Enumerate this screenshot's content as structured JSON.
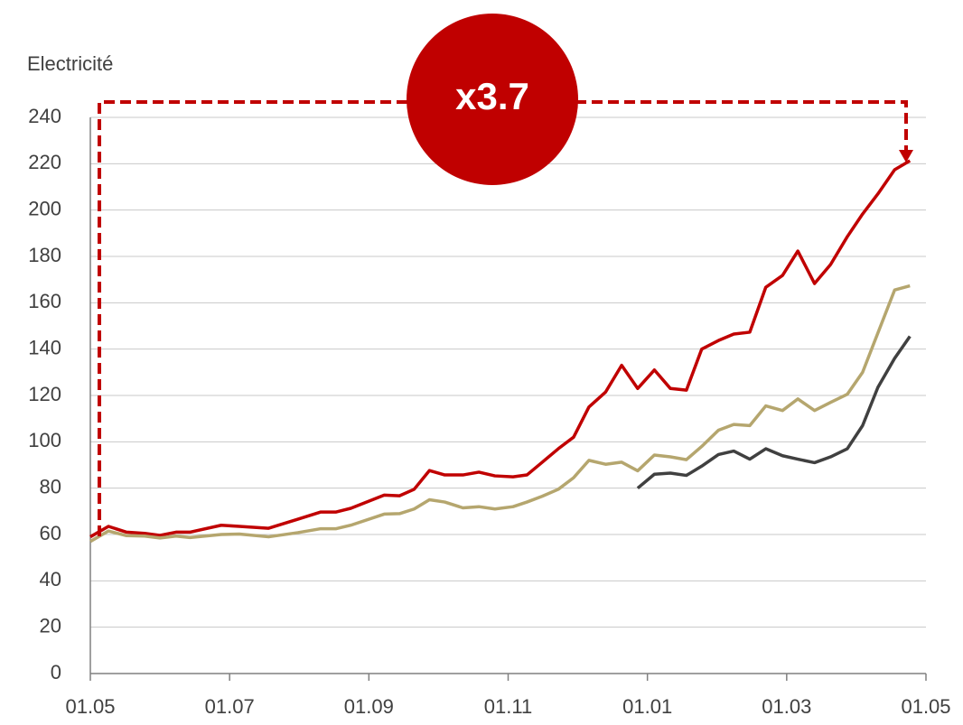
{
  "chart_data": {
    "type": "line",
    "y_label": "Electricité",
    "annotation": "x3.7",
    "x": [
      0,
      0.26,
      0.52,
      0.78,
      1.0,
      1.23,
      1.43,
      1.88,
      2.14,
      2.56,
      2.98,
      3.31,
      3.53,
      3.74,
      4.22,
      4.44,
      4.65,
      4.87,
      5.09,
      5.35,
      5.58,
      5.81,
      6.07,
      6.27,
      6.49,
      6.72,
      6.94,
      7.16,
      7.4,
      7.63,
      7.86,
      8.1,
      8.33,
      8.56,
      8.78,
      9.02,
      9.24,
      9.47,
      9.7,
      9.94,
      10.16,
      10.4,
      10.63,
      10.87,
      11.09,
      11.31,
      11.55,
      11.77
    ],
    "series": [
      {
        "color": "#c00000",
        "values": [
          59,
          63.5,
          61,
          60.5,
          59.6,
          61,
          61,
          64,
          63.5,
          62.7,
          66.6,
          69.7,
          69.7,
          71.3,
          77,
          76.7,
          79.5,
          87.6,
          85.7,
          85.7,
          86.9,
          85.3,
          84.9,
          85.7,
          91.2,
          97,
          102,
          115,
          121.5,
          133,
          123,
          131,
          123,
          122.3,
          140,
          143.7,
          146.5,
          147.3,
          166.7,
          171.8,
          182.3,
          168.3,
          176.5,
          188.5,
          198.3,
          207,
          217.4,
          221.3
        ]
      },
      {
        "color": "#b5a66e",
        "values": [
          57,
          61.5,
          59.5,
          59.3,
          58.5,
          59.3,
          58.7,
          60,
          60.2,
          59,
          60.8,
          62.5,
          62.5,
          64,
          68.8,
          69,
          71,
          75,
          74,
          71.5,
          72,
          71,
          72,
          74,
          76.5,
          79.5,
          84.5,
          92,
          90.3,
          91.2,
          87.5,
          94.3,
          93.5,
          92.3,
          98,
          105,
          107.5,
          107,
          115.5,
          113.5,
          118.5,
          113.5,
          117,
          120.5,
          130,
          147,
          165.5,
          167.3
        ]
      },
      {
        "color": "#404040",
        "values": [
          null,
          null,
          null,
          null,
          null,
          null,
          null,
          null,
          null,
          null,
          null,
          null,
          null,
          null,
          null,
          null,
          null,
          null,
          null,
          null,
          null,
          null,
          null,
          null,
          null,
          null,
          null,
          null,
          null,
          null,
          80,
          86,
          86.5,
          85.5,
          89.5,
          94.5,
          96,
          92.5,
          97,
          94,
          92.5,
          91,
          93.5,
          97,
          107,
          123.5,
          136,
          145.5
        ]
      }
    ],
    "xlim": [
      0,
      12
    ],
    "xticks": [
      {
        "value": 0,
        "label": "01.05"
      },
      {
        "value": 2,
        "label": "01.07"
      },
      {
        "value": 4,
        "label": "01.09"
      },
      {
        "value": 6,
        "label": "01.11"
      },
      {
        "value": 8,
        "label": "01.01"
      },
      {
        "value": 10,
        "label": "01.03"
      },
      {
        "value": 12,
        "label": "01.05"
      }
    ],
    "ylim": [
      0,
      240
    ],
    "yticks": [
      0,
      20,
      40,
      60,
      80,
      100,
      120,
      140,
      160,
      180,
      200,
      220,
      240
    ],
    "grid": true
  }
}
